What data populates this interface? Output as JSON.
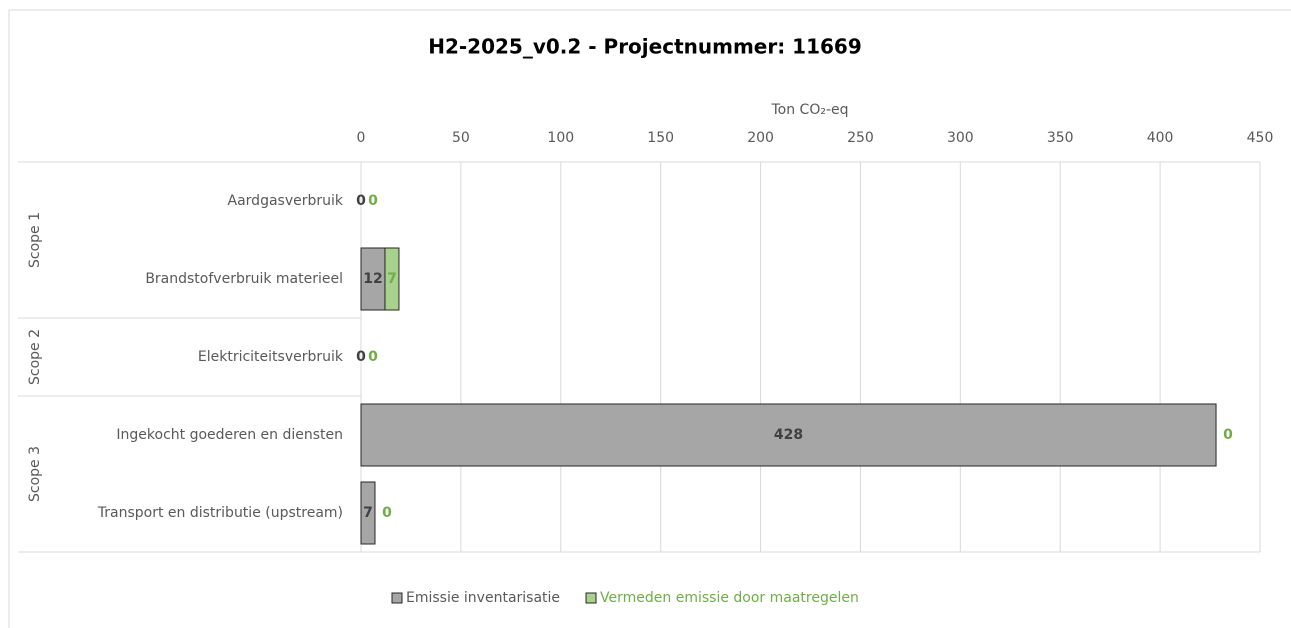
{
  "chart_data": {
    "type": "bar",
    "orientation": "horizontal",
    "stacked": true,
    "title": "H2-2025_v0.2 - Projectnummer: 11669",
    "x_label": "Ton CO₂-eq",
    "categories": [
      "Aardgasverbruik",
      "Brandstofverbruik materieel",
      "Elektriciteitsverbruik",
      "Ingekocht goederen en diensten",
      "Transport en distributie (upstream)"
    ],
    "groups": [
      "Scope 1",
      "Scope 1",
      "Scope 2",
      "Scope 3",
      "Scope 3"
    ],
    "series": [
      {
        "name": "Emissie inventarisatie",
        "color": "#a6a6a6",
        "label_color": "#404040",
        "values": [
          0,
          12,
          0,
          428,
          7
        ]
      },
      {
        "name": "Vermeden emissie door maatregelen",
        "color": "#a9d18e",
        "label_color": "#70ad47",
        "values": [
          0,
          7,
          0,
          0,
          0
        ]
      }
    ],
    "xlim": [
      0,
      450
    ],
    "xticks": [
      0,
      50,
      100,
      150,
      200,
      250,
      300,
      350,
      400,
      450
    ],
    "grid": true,
    "legend": "bottom"
  }
}
